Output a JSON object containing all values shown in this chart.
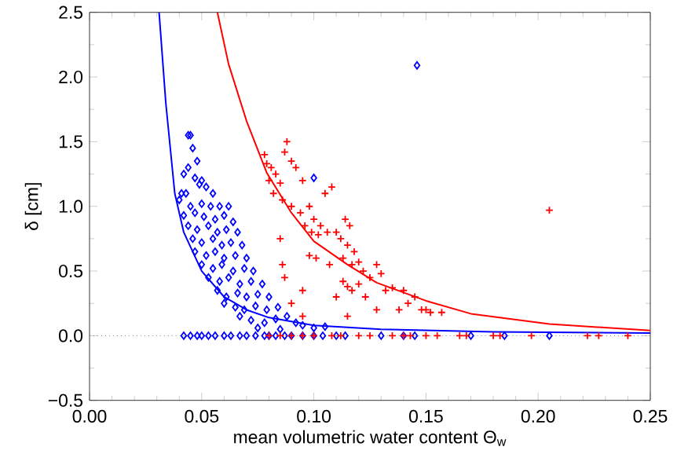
{
  "chart_data": {
    "type": "scatter",
    "xlabel": "mean volumetric water content Θ$_{w}$",
    "ylabel": "δ [cm]",
    "xlim": [
      0,
      0.25
    ],
    "ylim": [
      -0.5,
      2.5
    ],
    "xticks": [
      {
        "value": 0,
        "label": "0.00"
      },
      {
        "value": 0.05,
        "label": "0.05"
      },
      {
        "value": 0.1,
        "label": "0.10"
      },
      {
        "value": 0.15,
        "label": "0.15"
      },
      {
        "value": 0.2,
        "label": "0.20"
      },
      {
        "value": 0.25,
        "label": "0.25"
      }
    ],
    "yticks": [
      {
        "value": -0.5,
        "label": "−0.5"
      },
      {
        "value": 0,
        "label": "0.0"
      },
      {
        "value": 0.5,
        "label": "0.5"
      },
      {
        "value": 1,
        "label": "1.0"
      },
      {
        "value": 1.5,
        "label": "1.5"
      },
      {
        "value": 2,
        "label": "2.0"
      },
      {
        "value": 2.5,
        "label": "2.5"
      }
    ],
    "ref_lines": [
      {
        "axis": "y",
        "value": 0,
        "color": "#808080",
        "line_style": "dotted"
      }
    ],
    "series": [
      {
        "type": "scatter",
        "marker": "diamond",
        "color": "#0000ff",
        "x": [
          0.044,
          0.045,
          0.046,
          0.048,
          0.044,
          0.042,
          0.047,
          0.05,
          0.041,
          0.043,
          0.049,
          0.052,
          0.055,
          0.04,
          0.045,
          0.05,
          0.054,
          0.058,
          0.062,
          0.042,
          0.047,
          0.051,
          0.056,
          0.06,
          0.064,
          0.044,
          0.048,
          0.053,
          0.057,
          0.061,
          0.066,
          0.046,
          0.05,
          0.055,
          0.059,
          0.063,
          0.068,
          0.047,
          0.052,
          0.056,
          0.06,
          0.065,
          0.07,
          0.05,
          0.055,
          0.059,
          0.064,
          0.069,
          0.073,
          0.053,
          0.058,
          0.062,
          0.067,
          0.072,
          0.077,
          0.057,
          0.061,
          0.066,
          0.07,
          0.075,
          0.08,
          0.06,
          0.065,
          0.069,
          0.074,
          0.079,
          0.084,
          0.067,
          0.072,
          0.078,
          0.083,
          0.088,
          0.092,
          0.095,
          0.1,
          0.105,
          0.075,
          0.085,
          0.1,
          0.146,
          0.042,
          0.045,
          0.048,
          0.05,
          0.053,
          0.056,
          0.06,
          0.063,
          0.067,
          0.07,
          0.074,
          0.078,
          0.08,
          0.083,
          0.087,
          0.09,
          0.095,
          0.1,
          0.104,
          0.11,
          0.114,
          0.13,
          0.14,
          0.145,
          0.17,
          0.185,
          0.205
        ],
        "values": [
          1.55,
          1.55,
          1.45,
          1.35,
          1.3,
          1.25,
          1.22,
          1.2,
          1.1,
          1.1,
          1.17,
          1.15,
          1.1,
          1.05,
          1.0,
          1.02,
          1.0,
          1.0,
          1.0,
          0.93,
          0.95,
          0.92,
          0.9,
          0.93,
          0.88,
          0.85,
          0.82,
          0.85,
          0.8,
          0.82,
          0.8,
          0.75,
          0.72,
          0.75,
          0.7,
          0.72,
          0.7,
          0.65,
          0.62,
          0.65,
          0.6,
          0.62,
          0.6,
          0.55,
          0.52,
          0.55,
          0.5,
          0.52,
          0.5,
          0.45,
          0.42,
          0.45,
          0.4,
          0.42,
          0.4,
          0.35,
          0.3,
          0.33,
          0.3,
          0.32,
          0.3,
          0.25,
          0.22,
          0.2,
          0.23,
          0.2,
          0.22,
          0.15,
          0.12,
          0.1,
          0.13,
          0.15,
          0.1,
          0.08,
          0.06,
          0.07,
          0.06,
          0.05,
          1.22,
          2.09,
          0,
          0,
          0,
          0,
          0,
          0,
          0,
          0,
          0,
          0,
          0,
          0,
          0,
          0,
          0,
          0,
          0,
          0,
          0,
          0,
          0,
          0,
          0,
          0,
          0,
          0,
          0
        ]
      },
      {
        "type": "scatter",
        "marker": "cross",
        "color": "#ff0000",
        "x": [
          0.078,
          0.079,
          0.081,
          0.083,
          0.08,
          0.085,
          0.088,
          0.087,
          0.09,
          0.092,
          0.095,
          0.082,
          0.086,
          0.09,
          0.094,
          0.098,
          0.1,
          0.105,
          0.108,
          0.103,
          0.096,
          0.099,
          0.102,
          0.106,
          0.11,
          0.112,
          0.115,
          0.118,
          0.114,
          0.116,
          0.085,
          0.098,
          0.101,
          0.107,
          0.113,
          0.117,
          0.12,
          0.122,
          0.125,
          0.128,
          0.13,
          0.113,
          0.115,
          0.117,
          0.12,
          0.086,
          0.087,
          0.095,
          0.11,
          0.123,
          0.132,
          0.135,
          0.14,
          0.145,
          0.138,
          0.148,
          0.15,
          0.152,
          0.157,
          0.142,
          0.09,
          0.095,
          0.115,
          0.128,
          0.205,
          0.08,
          0.085,
          0.09,
          0.095,
          0.1,
          0.108,
          0.112,
          0.12,
          0.125,
          0.135,
          0.14,
          0.143,
          0.15,
          0.155,
          0.165,
          0.168,
          0.18,
          0.183,
          0.197,
          0.222,
          0.227,
          0.24
        ],
        "values": [
          1.4,
          1.33,
          1.3,
          1.25,
          1.2,
          1.18,
          1.5,
          1.42,
          1.35,
          1.3,
          1.2,
          1.1,
          1.05,
          1.0,
          0.95,
          1.0,
          0.9,
          1.1,
          1.15,
          0.85,
          0.85,
          0.8,
          0.78,
          0.8,
          0.8,
          0.75,
          0.7,
          0.65,
          0.9,
          0.85,
          0.75,
          0.62,
          0.6,
          0.55,
          0.6,
          0.55,
          0.57,
          0.5,
          0.45,
          0.55,
          0.48,
          0.42,
          0.38,
          0.35,
          0.4,
          0.55,
          0.45,
          0.35,
          0.3,
          0.3,
          0.35,
          0.37,
          0.35,
          0.3,
          0.2,
          0.2,
          0.2,
          0.18,
          0.18,
          0.25,
          0.25,
          0.15,
          0.15,
          0.2,
          0.97,
          0,
          0,
          0,
          0,
          0,
          0,
          0,
          0,
          0,
          0,
          0,
          0,
          0,
          0,
          0,
          0,
          0,
          0,
          0,
          0,
          0,
          0
        ]
      },
      {
        "type": "line",
        "marker": "none",
        "color": "#0000ff",
        "x": [
          0.031,
          0.034,
          0.038,
          0.042,
          0.05,
          0.06,
          0.07,
          0.08,
          0.1,
          0.13,
          0.18,
          0.25
        ],
        "values": [
          2.5,
          1.8,
          1.1,
          0.8,
          0.5,
          0.3,
          0.2,
          0.14,
          0.08,
          0.05,
          0.03,
          0.02
        ]
      },
      {
        "type": "line",
        "marker": "none",
        "color": "#ff0000",
        "x": [
          0.057,
          0.062,
          0.07,
          0.079,
          0.09,
          0.1,
          0.115,
          0.128,
          0.15,
          0.17,
          0.205,
          0.25
        ],
        "values": [
          2.5,
          2.1,
          1.66,
          1.26,
          0.95,
          0.73,
          0.55,
          0.41,
          0.27,
          0.17,
          0.09,
          0.04
        ]
      }
    ]
  }
}
